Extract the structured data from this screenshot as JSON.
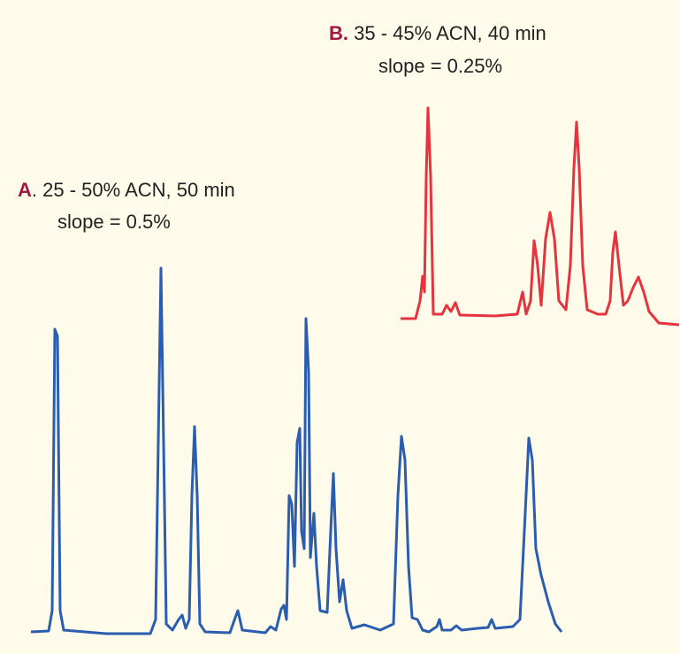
{
  "trace_b": {
    "key": "B.",
    "label": " 35 - 45% ACN, 40 min",
    "slope": "slope = 0.25%"
  },
  "trace_a": {
    "key": "A",
    "label": ". 25 - 50% ACN, 50 min",
    "slope": "slope = 0.5%"
  }
}
